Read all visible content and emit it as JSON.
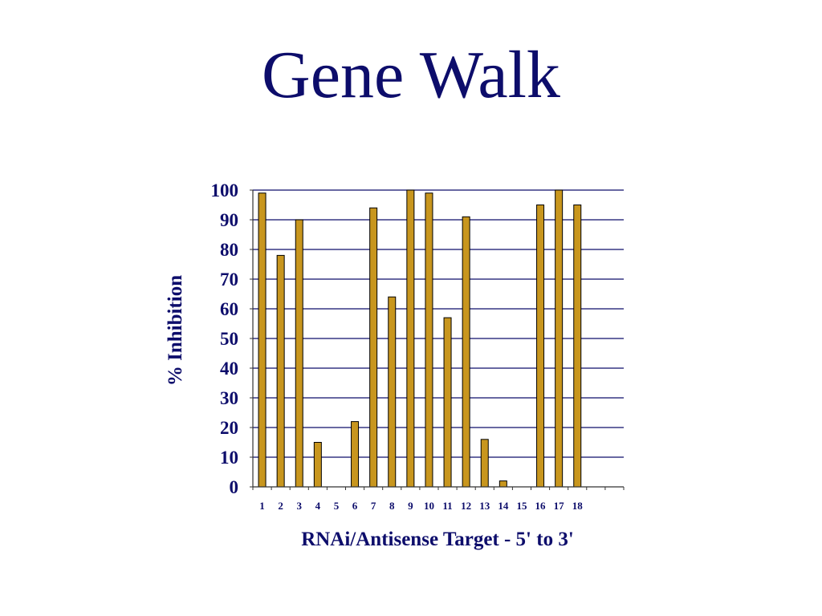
{
  "slide": {
    "title": "Gene Walk"
  },
  "chart_data": {
    "type": "bar",
    "title": "",
    "xlabel": "RNAi/Antisense Target - 5' to 3'",
    "ylabel": "% Inhibition",
    "ylim": [
      0,
      100
    ],
    "yticks": [
      0,
      10,
      20,
      30,
      40,
      50,
      60,
      70,
      80,
      90,
      100
    ],
    "categories": [
      "1",
      "2",
      "3",
      "4",
      "5",
      "6",
      "7",
      "8",
      "9",
      "10",
      "11",
      "12",
      "13",
      "14",
      "15",
      "16",
      "17",
      "18"
    ],
    "values": [
      99,
      78,
      90,
      15,
      0,
      22,
      94,
      64,
      100,
      99,
      57,
      91,
      16,
      2,
      0,
      95,
      100,
      95
    ],
    "grid": true,
    "legend": "none",
    "colors": {
      "bar": "#c8961e",
      "bar_outline": "#000000",
      "grid": "#0d0d6b",
      "text": "#0d0d6b"
    }
  }
}
